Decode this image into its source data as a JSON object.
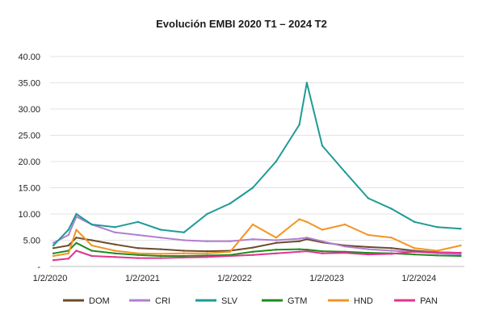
{
  "chart_data": {
    "type": "line",
    "title": "Evolución EMBI 2020 T1 – 2024 T2",
    "xlabel": "",
    "ylabel": "",
    "ylim": [
      0,
      40
    ],
    "yticks": [
      "-",
      "5.00",
      "10.00",
      "15.00",
      "20.00",
      "25.00",
      "30.00",
      "35.00",
      "40.00"
    ],
    "xticks": [
      "1/2/2020",
      "1/2/2021",
      "1/2/2022",
      "1/2/2023",
      "1/2/2024"
    ],
    "x_range": [
      "2020-01-02",
      "2024-06-30"
    ],
    "legend_position": "bottom",
    "grid": "horizontal",
    "x": [
      "2020-01",
      "2020-03",
      "2020-04",
      "2020-06",
      "2020-09",
      "2020-12",
      "2021-03",
      "2021-06",
      "2021-09",
      "2021-12",
      "2022-03",
      "2022-06",
      "2022-09",
      "2022-10",
      "2022-12",
      "2023-03",
      "2023-06",
      "2023-09",
      "2023-12",
      "2024-03",
      "2024-06"
    ],
    "series": [
      {
        "name": "DOM",
        "color": "#6b4c2a",
        "values": [
          3.5,
          4.0,
          5.5,
          5.0,
          4.2,
          3.5,
          3.3,
          3.0,
          2.9,
          3.0,
          3.6,
          4.5,
          4.8,
          5.2,
          4.6,
          4.0,
          3.7,
          3.5,
          3.0,
          2.7,
          2.6
        ]
      },
      {
        "name": "CRI",
        "color": "#b07fd0",
        "values": [
          4.5,
          6.0,
          9.5,
          8.0,
          6.5,
          6.0,
          5.5,
          5.0,
          4.8,
          4.8,
          5.2,
          5.0,
          5.3,
          5.5,
          4.8,
          3.8,
          3.3,
          3.0,
          2.8,
          2.5,
          2.3
        ]
      },
      {
        "name": "SLV",
        "color": "#1f9a96",
        "values": [
          4.0,
          7.0,
          10.0,
          8.0,
          7.5,
          8.5,
          7.0,
          6.5,
          10.0,
          12.0,
          15.0,
          20.0,
          27.0,
          35.0,
          23.0,
          18.0,
          13.0,
          11.0,
          8.5,
          7.5,
          7.2
        ]
      },
      {
        "name": "GTM",
        "color": "#1f8b1f",
        "values": [
          2.5,
          3.0,
          4.5,
          3.0,
          2.5,
          2.2,
          2.0,
          2.0,
          2.1,
          2.2,
          2.8,
          3.2,
          3.3,
          3.2,
          2.9,
          2.8,
          2.6,
          2.5,
          2.3,
          2.1,
          2.0
        ]
      },
      {
        "name": "HND",
        "color": "#f39422",
        "values": [
          2.0,
          2.5,
          7.0,
          4.0,
          3.0,
          2.5,
          2.4,
          2.5,
          2.5,
          2.8,
          8.0,
          5.5,
          9.0,
          8.5,
          7.0,
          8.0,
          6.0,
          5.5,
          3.5,
          3.0,
          4.0
        ]
      },
      {
        "name": "PAN",
        "color": "#e0358f",
        "values": [
          1.2,
          1.5,
          3.0,
          2.0,
          1.8,
          1.6,
          1.6,
          1.7,
          1.8,
          2.0,
          2.2,
          2.5,
          2.8,
          2.9,
          2.5,
          2.6,
          2.3,
          2.4,
          2.8,
          2.7,
          2.6
        ]
      }
    ]
  }
}
